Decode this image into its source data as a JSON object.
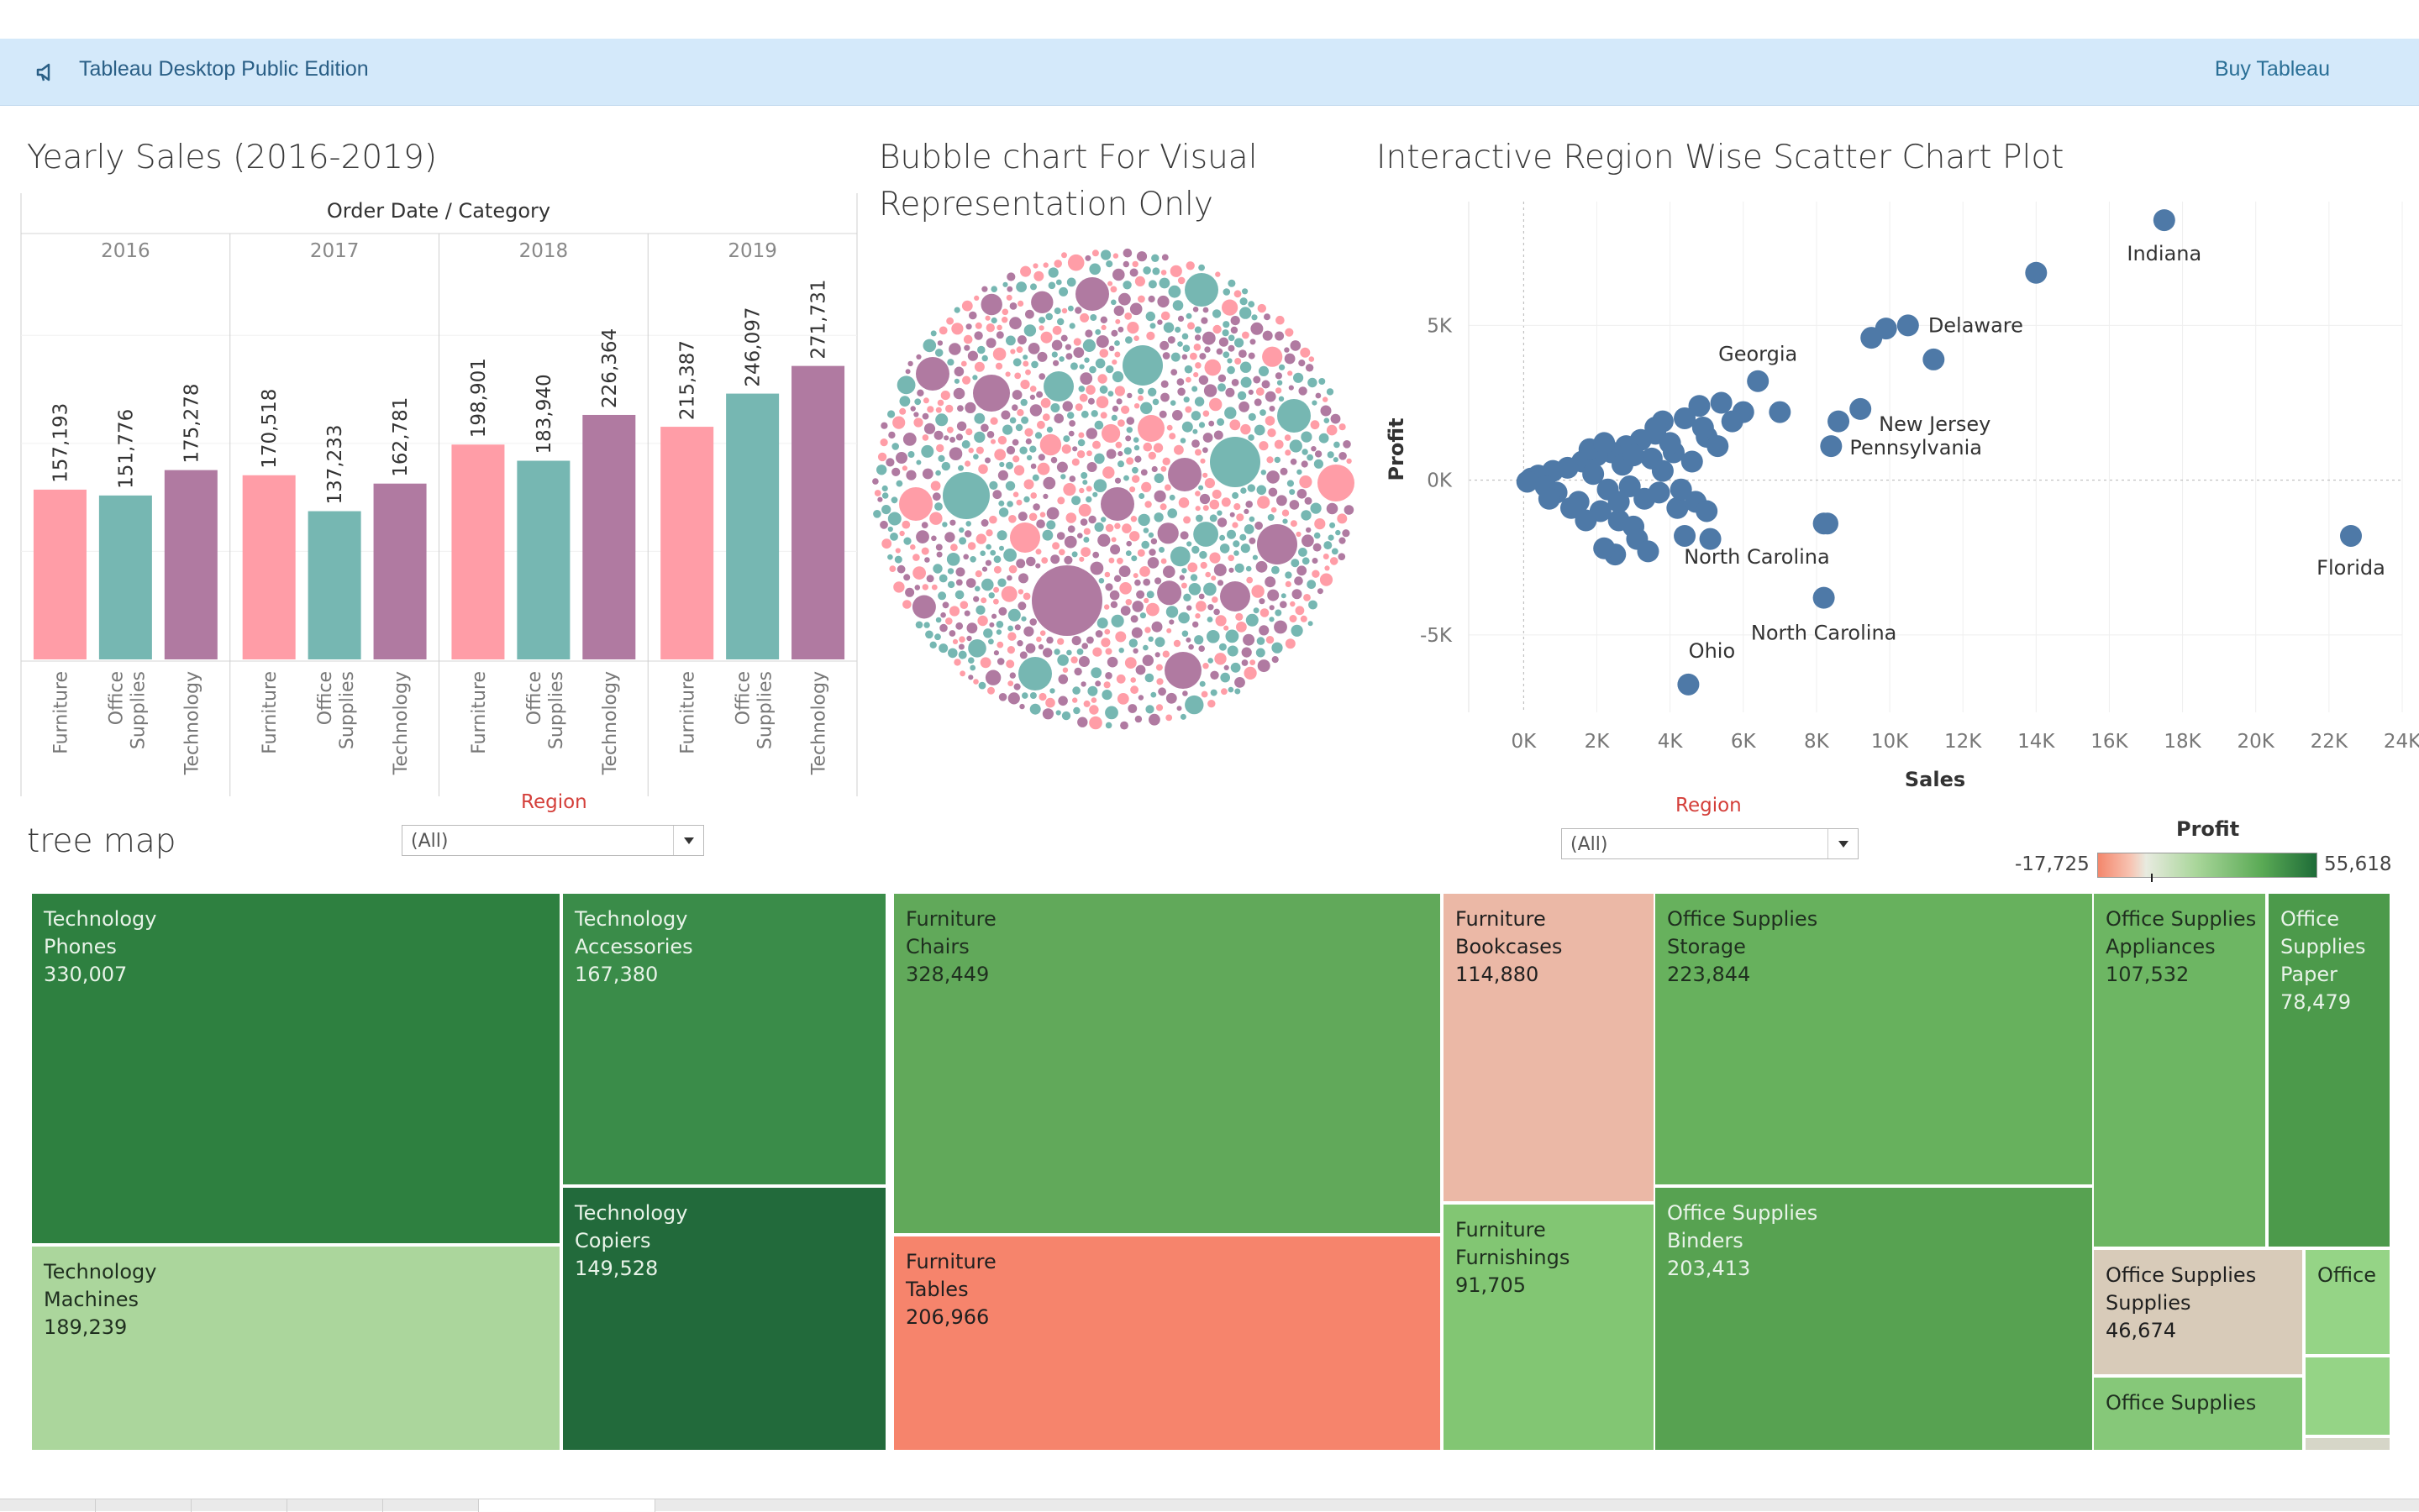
{
  "banner": {
    "title": "Tableau Desktop Public Edition",
    "buy_label": "Buy Tableau",
    "icon": "megaphone-icon"
  },
  "titles": {
    "bar": "Yearly Sales (2016-2019)",
    "bubble_line1": "Bubble chart For Visual",
    "bubble_line2": "Representation Only",
    "scatter": "Interactive Region Wise  Scatter Chart Plot",
    "treemap": "tree map"
  },
  "filters": {
    "region_left": {
      "label": "Region",
      "value": "(All)"
    },
    "region_right": {
      "label": "Region",
      "value": "(All)"
    }
  },
  "colors": {
    "furniture": "#ff9da7",
    "office_supplies": "#76b7b2",
    "technology": "#b07aa1",
    "scatter_dot": "#4e79a7"
  },
  "chart_data": [
    {
      "type": "bar",
      "title": "Yearly Sales (2016-2019)",
      "header": "Order Date  /  Category",
      "years": [
        "2016",
        "2017",
        "2018",
        "2019"
      ],
      "categories": [
        "Furniture",
        "Office\nSupplies",
        "Technology"
      ],
      "values": [
        [
          157193,
          151776,
          175278
        ],
        [
          170518,
          137233,
          162781
        ],
        [
          198901,
          183940,
          226364
        ],
        [
          215387,
          246097,
          271731
        ]
      ],
      "labels": [
        [
          "157,193",
          "151,776",
          "175,278"
        ],
        [
          "170,518",
          "137,233",
          "162,781"
        ],
        [
          "198,901",
          "183,940",
          "226,364"
        ],
        [
          "215,387",
          "246,097",
          "271,731"
        ]
      ],
      "ylim": [
        0,
        350000
      ],
      "grid": true
    },
    {
      "type": "scatter",
      "title": "Bubble chart For Visual Representation Only",
      "note": "packed bubbles, colored by category"
    },
    {
      "type": "scatter",
      "title": "Interactive Region Wise  Scatter Chart Plot",
      "xlabel": "Sales",
      "ylabel": "Profit",
      "xlim": [
        -1500,
        24000
      ],
      "ylim": [
        -7500,
        9000
      ],
      "xticks": [
        "0K",
        "2K",
        "4K",
        "6K",
        "8K",
        "10K",
        "12K",
        "14K",
        "16K",
        "18K",
        "20K",
        "22K",
        "24K"
      ],
      "xtick_values": [
        0,
        2000,
        4000,
        6000,
        8000,
        10000,
        12000,
        14000,
        16000,
        18000,
        20000,
        22000,
        24000
      ],
      "yticks": [
        "5K",
        "0K",
        "-5K"
      ],
      "ytick_values": [
        5000,
        0,
        -5000
      ],
      "labeled_points": [
        {
          "label": "Indiana",
          "x": 17500,
          "y": 8400
        },
        {
          "label": "Delaware",
          "x": 10500,
          "y": 5000
        },
        {
          "label": "Georgia",
          "x": 6400,
          "y": 3200
        },
        {
          "label": "New Jersey",
          "x": 9200,
          "y": 2300
        },
        {
          "label": "Pennsylvania",
          "x": 8400,
          "y": 1100
        },
        {
          "label": "Florida",
          "x": 22600,
          "y": -1800
        },
        {
          "label": "North Carolina",
          "x": 8300,
          "y": -1400
        },
        {
          "label": "North Carolina",
          "x": 8200,
          "y": -3800
        },
        {
          "label": "Ohio",
          "x": 4500,
          "y": -6600
        }
      ],
      "points": [
        [
          14000,
          6700
        ],
        [
          9500,
          4600
        ],
        [
          9900,
          4900
        ],
        [
          11200,
          3900
        ],
        [
          7000,
          2200
        ],
        [
          8600,
          1900
        ],
        [
          5400,
          2500
        ],
        [
          4800,
          2400
        ],
        [
          4400,
          2000
        ],
        [
          3800,
          1900
        ],
        [
          5000,
          1400
        ],
        [
          5300,
          1100
        ],
        [
          3600,
          1500
        ],
        [
          3200,
          1300
        ],
        [
          2800,
          1100
        ],
        [
          2400,
          900
        ],
        [
          2000,
          800
        ],
        [
          1600,
          600
        ],
        [
          1200,
          400
        ],
        [
          800,
          300
        ],
        [
          400,
          150
        ],
        [
          200,
          50
        ],
        [
          100,
          -50
        ],
        [
          600,
          -200
        ],
        [
          900,
          -400
        ],
        [
          1500,
          -700
        ],
        [
          2100,
          -1000
        ],
        [
          2600,
          -1300
        ],
        [
          3000,
          -1500
        ],
        [
          4200,
          -900
        ],
        [
          4700,
          -700
        ],
        [
          5000,
          -1000
        ],
        [
          3100,
          -1900
        ],
        [
          3400,
          -2300
        ],
        [
          2500,
          -2400
        ],
        [
          2200,
          -2200
        ],
        [
          1700,
          -1300
        ],
        [
          8200,
          -1400
        ],
        [
          4400,
          -1800
        ],
        [
          5100,
          -1900
        ],
        [
          2700,
          500
        ],
        [
          3500,
          700
        ],
        [
          4100,
          900
        ],
        [
          1900,
          200
        ],
        [
          3800,
          300
        ],
        [
          2300,
          -300
        ],
        [
          2900,
          -200
        ],
        [
          3300,
          -600
        ],
        [
          700,
          -600
        ],
        [
          1300,
          -900
        ],
        [
          4000,
          1200
        ],
        [
          3000,
          800
        ],
        [
          4600,
          600
        ],
        [
          1800,
          1000
        ],
        [
          2200,
          1200
        ],
        [
          3600,
          1700
        ],
        [
          4900,
          1700
        ],
        [
          6000,
          2200
        ],
        [
          5700,
          1900
        ],
        [
          2600,
          -700
        ],
        [
          3700,
          -400
        ],
        [
          4300,
          -300
        ]
      ]
    },
    {
      "type": "heatmap",
      "title": "tree map",
      "legend_title": "Profit",
      "legend_min": "-17,725",
      "legend_max": "55,618"
    }
  ],
  "treemap": {
    "tiles": [
      {
        "category": "Technology",
        "sub": "Phones",
        "value": "330,007"
      },
      {
        "category": "Technology",
        "sub": "Machines",
        "value": "189,239"
      },
      {
        "category": "Technology",
        "sub": "Accessories",
        "value": "167,380"
      },
      {
        "category": "Technology",
        "sub": "Copiers",
        "value": "149,528"
      },
      {
        "category": "Furniture",
        "sub": "Chairs",
        "value": "328,449"
      },
      {
        "category": "Furniture",
        "sub": "Tables",
        "value": "206,966"
      },
      {
        "category": "Furniture",
        "sub": "Bookcases",
        "value": "114,880"
      },
      {
        "category": "Furniture",
        "sub": "Furnishings",
        "value": "91,705"
      },
      {
        "category": "Office Supplies",
        "sub": "Storage",
        "value": "223,844"
      },
      {
        "category": "Office Supplies",
        "sub": "Binders",
        "value": "203,413"
      },
      {
        "category": "Office Supplies",
        "sub": "Appliances",
        "value": "107,532"
      },
      {
        "category": "Office",
        "sub": "Supplies",
        "value": "78,479",
        "extra": "Paper"
      },
      {
        "category": "Office Supplies",
        "sub": "Supplies",
        "value": "46,674"
      },
      {
        "category": "Office Supplies",
        "sub": "",
        "value": ""
      },
      {
        "category": "Office",
        "sub": "",
        "value": ""
      }
    ]
  }
}
